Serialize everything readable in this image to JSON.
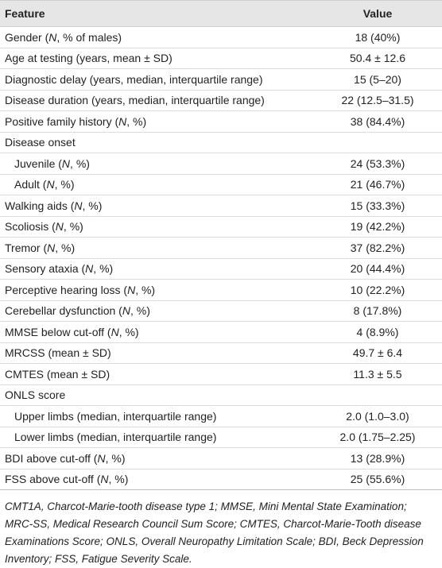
{
  "table": {
    "header": [
      "Feature",
      "Value"
    ],
    "rows": [
      {
        "feature": "Gender (N, % of males)",
        "value": "18 (40%)"
      },
      {
        "feature": "Age at testing (years, mean ± SD)",
        "value": "50.4 ± 12.6"
      },
      {
        "feature": "Diagnostic delay (years, median, interquartile range)",
        "value": "15 (5–20)"
      },
      {
        "feature": "Disease duration (years, median, interquartile range)",
        "value": "22 (12.5–31.5)"
      },
      {
        "feature": "Positive family history (N, %)",
        "value": "38 (84.4%)"
      },
      {
        "feature": "Disease onset",
        "subrows": [
          {
            "feature": "Juvenile (N, %)",
            "value": "24 (53.3%)"
          },
          {
            "feature": "Adult (N, %)",
            "value": "21 (46.7%)"
          }
        ]
      },
      {
        "feature": "Walking aids (N, %)",
        "value": "15 (33.3%)"
      },
      {
        "feature": "Scoliosis (N, %)",
        "value": "19 (42.2%)"
      },
      {
        "feature": "Tremor (N, %)",
        "value": "37 (82.2%)"
      },
      {
        "feature": "Sensory ataxia (N, %)",
        "value": "20 (44.4%)"
      },
      {
        "feature": "Perceptive hearing loss (N, %)",
        "value": "10 (22.2%)"
      },
      {
        "feature": "Cerebellar dysfunction (N, %)",
        "value": "8 (17.8%)"
      },
      {
        "feature": "MMSE below cut-off (N, %)",
        "value": "4 (8.9%)"
      },
      {
        "feature": "MRCSS (mean ± SD)",
        "value": "49.7 ± 6.4"
      },
      {
        "feature": "CMTES (mean ± SD)",
        "value": "11.3 ± 5.5"
      },
      {
        "feature": "ONLS score",
        "subrows": [
          {
            "feature": "Upper limbs (median, interquartile range)",
            "value": "2.0 (1.0–3.0)"
          },
          {
            "feature": "Lower limbs (median, interquartile range)",
            "value": "2.0 (1.75–2.25)"
          }
        ]
      },
      {
        "feature": "BDI above cut-off (N, %)",
        "value": "13 (28.9%)"
      },
      {
        "feature": "FSS above cut-off (N, %)",
        "value": "25 (55.6%)"
      }
    ]
  },
  "footnote": "CMT1A, Charcot-Marie-tooth disease type 1; MMSE, Mini Mental State Examination; MRC-SS, Medical Research Council Sum Score; CMTES, Charcot-Marie-Tooth disease Examinations Score; ONLS, Overall Neuropathy Limitation Scale; BDI, Beck Depression Inventory; FSS, Fatigue Severity Scale."
}
